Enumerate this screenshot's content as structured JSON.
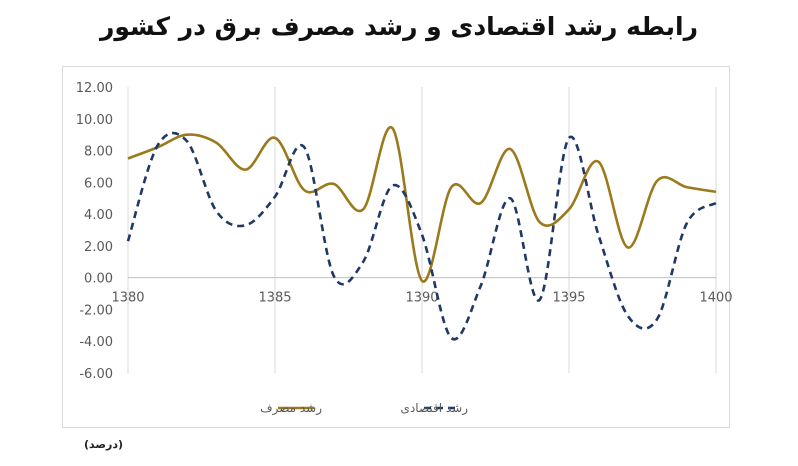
{
  "title": "رابطه رشد اقتصادی و رشد مصرف برق در کشور",
  "unit_note": "(درصد)",
  "colors": {
    "consumption": "#9b7a1d",
    "economic": "#1f3864",
    "grid": "#d9d9d9",
    "axis_text": "#595959"
  },
  "chart_data": {
    "type": "line",
    "title": "رابطه رشد اقتصادی و رشد مصرف برق در کشور",
    "xlabel": "",
    "ylabel": "",
    "xlim": [
      1380,
      1400
    ],
    "ylim": [
      -6,
      12
    ],
    "y_ticks": [
      -6,
      -4,
      -2,
      0,
      2,
      4,
      6,
      8,
      10,
      12
    ],
    "y_tick_labels": [
      "-6.00",
      "-4.00",
      "-2.00",
      "0.00",
      "2.00",
      "4.00",
      "6.00",
      "8.00",
      "10.00",
      "12.00"
    ],
    "x_ticks": [
      1380,
      1385,
      1390,
      1395,
      1400
    ],
    "x_tick_labels": [
      "1380",
      "1385",
      "1390",
      "1395",
      "1400"
    ],
    "grid": "vertical",
    "legend_position": "bottom",
    "series": [
      {
        "name": "رشد مصرف",
        "style": "solid",
        "x": [
          1380,
          1381,
          1382,
          1383,
          1384,
          1385,
          1386,
          1387,
          1388,
          1389,
          1390,
          1391,
          1392,
          1393,
          1394,
          1395,
          1396,
          1397,
          1398,
          1399,
          1400
        ],
        "values": [
          7.5,
          8.2,
          9.0,
          8.5,
          6.8,
          8.8,
          5.5,
          5.9,
          4.3,
          9.4,
          -0.2,
          5.7,
          4.7,
          8.1,
          3.5,
          4.3,
          7.3,
          1.9,
          6.1,
          5.7,
          5.4
        ]
      },
      {
        "name": "رشد اقتصادی",
        "style": "dashed",
        "x": [
          1380,
          1381,
          1382,
          1383,
          1384,
          1385,
          1386,
          1387,
          1388,
          1389,
          1390,
          1391,
          1392,
          1393,
          1394,
          1395,
          1396,
          1397,
          1398,
          1399,
          1400
        ],
        "values": [
          2.3,
          8.3,
          8.6,
          4.2,
          3.3,
          5.1,
          8.2,
          0.1,
          1.0,
          5.8,
          2.7,
          -3.8,
          -0.5,
          5.0,
          -1.4,
          8.8,
          2.7,
          -2.4,
          -2.6,
          3.4,
          4.7
        ]
      }
    ]
  }
}
